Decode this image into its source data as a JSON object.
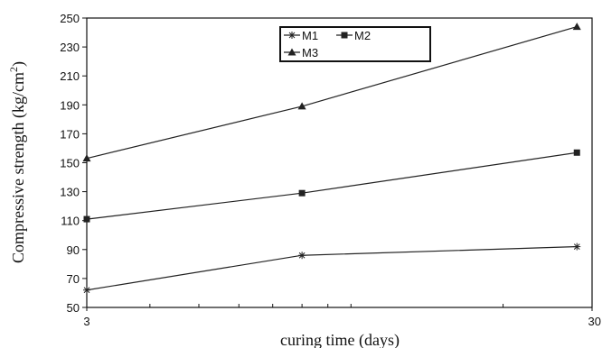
{
  "chart_data": {
    "type": "line",
    "x_scale": "log",
    "x": [
      3,
      8,
      28
    ],
    "xlabel": "curing time (days)",
    "ylabel_main": "Compressive strength (kg/cm",
    "ylabel_sup": "2",
    "ylabel_close": ")",
    "xlim": [
      3,
      30
    ],
    "ylim": [
      50,
      250
    ],
    "x_ticks": [
      3,
      30
    ],
    "y_ticks": [
      50,
      70,
      90,
      110,
      130,
      150,
      170,
      190,
      210,
      230,
      250
    ],
    "grid": false,
    "legend_position": "top-center",
    "series": [
      {
        "name": "M1",
        "marker": "asterisk",
        "values": [
          62,
          86,
          92
        ]
      },
      {
        "name": "M2",
        "marker": "square",
        "values": [
          111,
          129,
          157
        ]
      },
      {
        "name": "M3",
        "marker": "triangle",
        "values": [
          153,
          189,
          244
        ]
      }
    ]
  }
}
